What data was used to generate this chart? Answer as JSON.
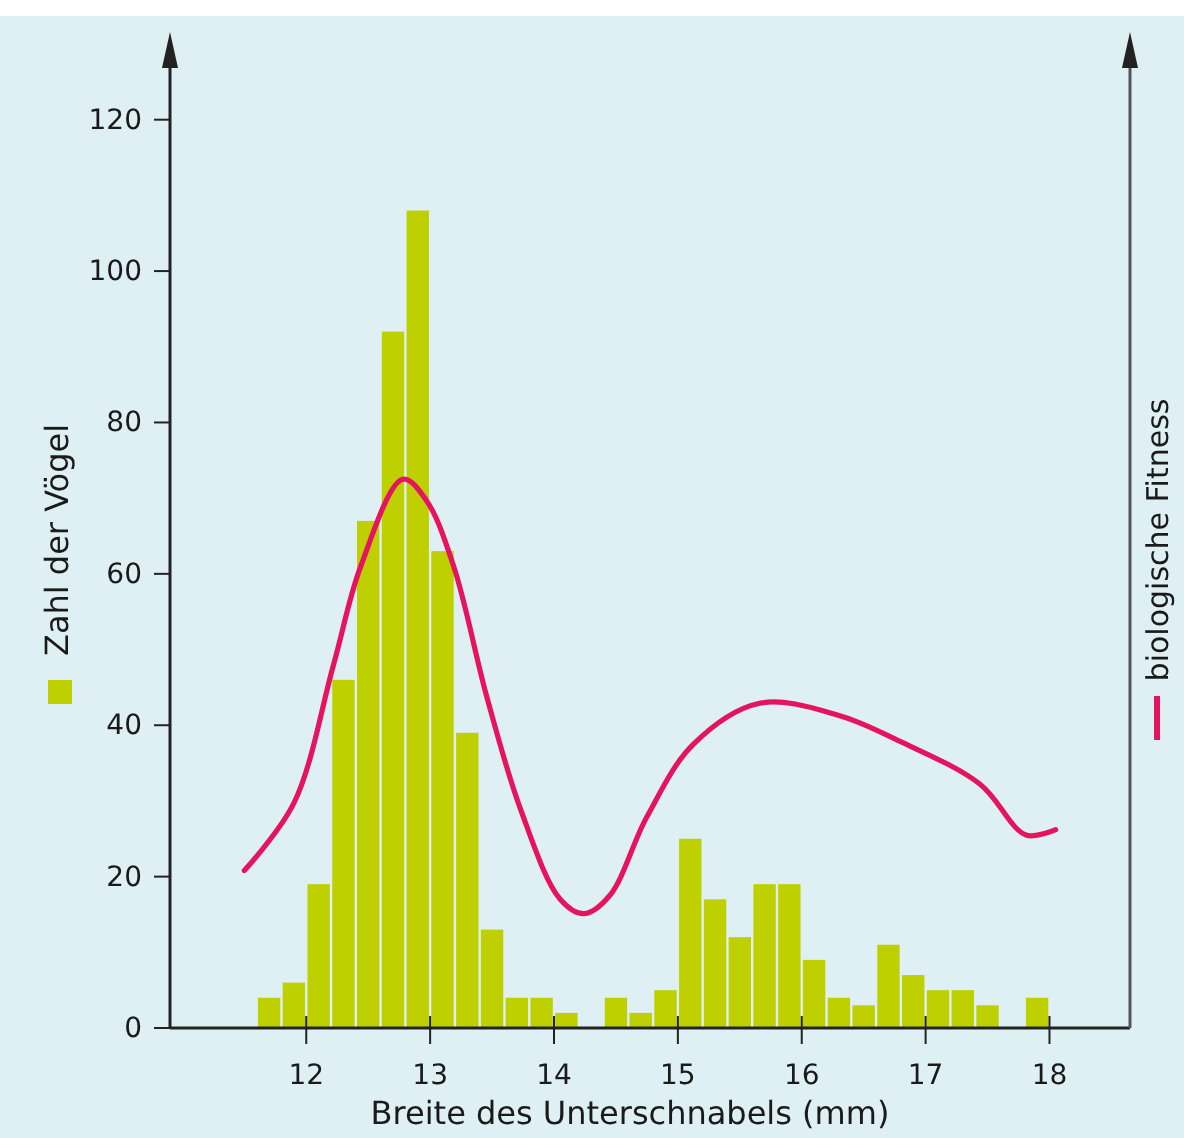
{
  "chart_data": {
    "type": "histogram",
    "xlabel": "Breite des Unterschnabels (mm)",
    "ylabel": "Zahl der Vögel",
    "y2label": "biologische Fitness",
    "bins": [
      11.6,
      11.8,
      12.0,
      12.2,
      12.4,
      12.6,
      12.8,
      13.0,
      13.2,
      13.4,
      13.6,
      13.8,
      14.0,
      14.2,
      14.4,
      14.6,
      14.8,
      15.0,
      15.2,
      15.4,
      15.6,
      15.8,
      16.0,
      16.2,
      16.4,
      16.6,
      16.8,
      17.0,
      17.2,
      17.4,
      17.6,
      17.8,
      18.0
    ],
    "values": [
      4,
      6,
      19,
      46,
      67,
      92,
      108,
      63,
      39,
      13,
      4,
      4,
      2,
      0,
      4,
      2,
      5,
      25,
      17,
      12,
      19,
      19,
      9,
      4,
      3,
      11,
      7,
      5,
      5,
      3,
      0,
      4
    ],
    "color": "#bfd000",
    "series": [
      {
        "type": "line",
        "color": "#e5145f",
        "x": [
          11.5,
          11.9,
          12.22,
          12.44,
          12.78,
          12.97,
          13.19,
          13.46,
          13.73,
          14.05,
          14.24,
          14.45,
          14.75,
          15.12,
          15.66,
          16.3,
          16.79,
          17.44,
          17.81,
          18.05
        ],
        "values": [
          20.8,
          29.7,
          48,
          61,
          72.5,
          69.7,
          61,
          43.6,
          28.9,
          17,
          15.1,
          17.5,
          27.9,
          37.4,
          42.9,
          41.3,
          37.9,
          32.2,
          25.5,
          26.2
        ]
      }
    ],
    "xlim": [
      10.9,
      18.65
    ],
    "xticks": [
      12,
      13,
      14,
      15,
      16,
      17,
      18
    ],
    "ylim": [
      0,
      130
    ],
    "yticks": [
      0,
      20,
      40,
      60,
      80,
      100,
      120
    ],
    "tick_labels": "xy",
    "grid": false
  }
}
